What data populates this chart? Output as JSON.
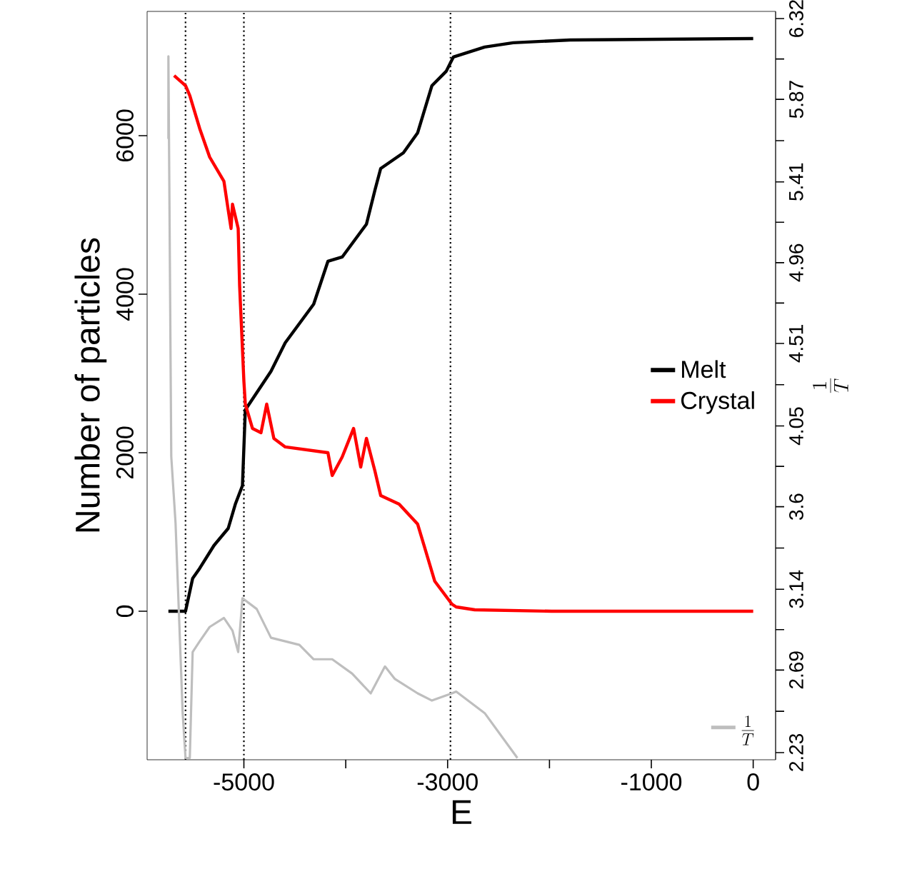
{
  "chart_data": {
    "type": "line",
    "xlabel": "E",
    "ylabel": "Number of particles",
    "y2label": "\\frac{1}{T}",
    "xlim": [
      -5950,
      220
    ],
    "xticks": [
      -5000,
      {
        "value": -4000,
        "label": null
      },
      -3000,
      {
        "value": -2000,
        "label": null
      },
      -1000,
      0
    ],
    "ylim": [
      -1874,
      7568
    ],
    "yticks": [
      0,
      2000,
      4000,
      6000
    ],
    "y2lim": [
      2.19,
      6.36
    ],
    "y2ticks": [
      2.23,
      {
        "value": 2.46,
        "label": null
      },
      2.69,
      {
        "value": 2.915,
        "label": null
      },
      3.14,
      {
        "value": 3.37,
        "label": null
      },
      3.6,
      {
        "value": 3.825,
        "label": null
      },
      4.05,
      {
        "value": 4.28,
        "label": null
      },
      4.51,
      {
        "value": 4.735,
        "label": null
      },
      4.96,
      {
        "value": 5.185,
        "label": null
      },
      5.41,
      {
        "value": 5.64,
        "label": null
      },
      5.87,
      {
        "value": 6.095,
        "label": null
      },
      6.32
    ],
    "legend": "right",
    "line_style": "solid",
    "ref_lines": [
      {
        "axis": "x",
        "value": -5573,
        "color": "#000000",
        "line_style": "dotted"
      },
      {
        "axis": "x",
        "value": -5000,
        "color": "#000000",
        "line_style": "dotted"
      },
      {
        "axis": "x",
        "value": -2972,
        "color": "#000000",
        "line_style": "dotted"
      }
    ],
    "series": [
      {
        "name": "Melt",
        "color": "#000000",
        "x": [
          -5741,
          -5573,
          -5503,
          -5434,
          -5294,
          -5154,
          -5084,
          -5014,
          -4986,
          -4874,
          -4734,
          -4594,
          -4315,
          -4175,
          -4035,
          -3797,
          -3713,
          -3657,
          -3434,
          -3294,
          -3154,
          -3014,
          -2944,
          -2636,
          -2357,
          -1797,
          0
        ],
        "values": [
          0,
          0,
          414,
          541,
          829,
          1045,
          1351,
          1586,
          2541,
          2757,
          3027,
          3388,
          3874,
          4415,
          4469,
          4883,
          5316,
          5586,
          5784,
          6037,
          6631,
          6812,
          6992,
          7118,
          7172,
          7208,
          7226
        ]
      },
      {
        "name": "Crystal",
        "color": "#ff0000",
        "x": [
          -5685,
          -5573,
          -5531,
          -5434,
          -5336,
          -5196,
          -5154,
          -5126,
          -5112,
          -5056,
          -5042,
          -5000,
          -4986,
          -4916,
          -4832,
          -4776,
          -4706,
          -4594,
          -4175,
          -4133,
          -4035,
          -3923,
          -3853,
          -3797,
          -3713,
          -3657,
          -3476,
          -3294,
          -3126,
          -2958,
          -2916,
          -2734,
          -1979,
          0
        ],
        "values": [
          6758,
          6631,
          6505,
          6091,
          5730,
          5424,
          5063,
          4829,
          5135,
          4829,
          4109,
          2901,
          2613,
          2307,
          2253,
          2613,
          2181,
          2073,
          2000,
          1712,
          1946,
          2307,
          1820,
          2181,
          1766,
          1460,
          1351,
          1099,
          378,
          90,
          54,
          18,
          0,
          0
        ]
      },
      {
        "name": "\\frac{1}{T}",
        "color": "#bebebe",
        "axis": "y2",
        "x": [
          -5741,
          -5741,
          -5713,
          -5671,
          -5601,
          -5573,
          -5531,
          -5503,
          -5434,
          -5336,
          -5196,
          -5112,
          -5056,
          -5014,
          -4874,
          -4734,
          -4455,
          -4315,
          -4133,
          -3937,
          -3755,
          -3615,
          -3517,
          -3294,
          -3154,
          -2958,
          -2916,
          -2636,
          -2315
        ],
        "values": [
          5.65,
          6.11,
          3.88,
          3.51,
          2.45,
          2.2,
          2.2,
          2.79,
          2.85,
          2.93,
          2.98,
          2.91,
          2.79,
          3.09,
          3.03,
          2.87,
          2.83,
          2.75,
          2.75,
          2.67,
          2.56,
          2.71,
          2.64,
          2.56,
          2.52,
          2.56,
          2.57,
          2.45,
          2.2
        ]
      }
    ]
  }
}
